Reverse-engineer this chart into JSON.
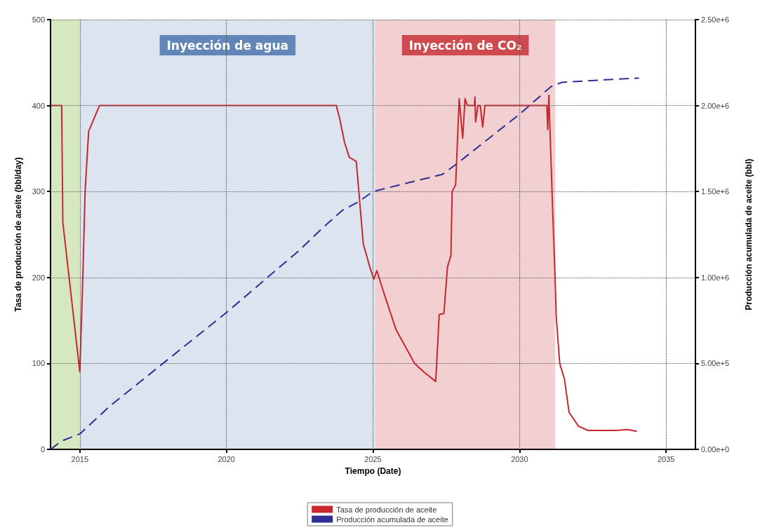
{
  "chart_data": {
    "type": "line",
    "xlabel": "Tiempo (Date)",
    "ylabel": "Tasa de producción de aceite (bbl/day)",
    "y2label": "Producción acumulada de aceite (bbl)",
    "xlim": [
      2014,
      2036
    ],
    "xticks": [
      2015,
      2020,
      2025,
      2030,
      2035
    ],
    "ylim": [
      0,
      500
    ],
    "yticks": [
      0,
      100,
      200,
      300,
      400,
      500
    ],
    "y2lim": [
      0,
      2500000
    ],
    "y2ticks": [
      {
        "value": 0,
        "label": "0.00e+0"
      },
      {
        "value": 500000,
        "label": "5.00e+5"
      },
      {
        "value": 1000000,
        "label": "1.00e+6"
      },
      {
        "value": 1500000,
        "label": "1.50e+6"
      },
      {
        "value": 2000000,
        "label": "2.00e+6"
      },
      {
        "value": 2500000,
        "label": "2.50e+6"
      }
    ],
    "grid": true,
    "legend": "bottom",
    "marker": "none",
    "bands": [
      {
        "axis": "x",
        "from": 2014,
        "to": 2015,
        "color": "#d5e8bf"
      },
      {
        "axis": "x",
        "from": 2015,
        "to": 2025.08,
        "label": "Inyección de agua",
        "color": "#dce4ef"
      },
      {
        "axis": "x",
        "from": 2025.08,
        "to": 2031.22,
        "label": "Inyección de CO₂",
        "color": "#f2cfd0"
      }
    ],
    "series": [
      {
        "name": "Tasa de producción de aceite",
        "color": "#c8282d",
        "line_style": "solid",
        "x": [
          2014,
          2014,
          2014.38,
          2014.42,
          2015,
          2015.1,
          2015.18,
          2015.3,
          2015.67,
          2023.75,
          2023.87,
          2024.03,
          2024.19,
          2024.43,
          2024.67,
          2024.91,
          2025.03,
          2025.13,
          2025.39,
          2025.79,
          2026.42,
          2026.74,
          2027.14,
          2027.26,
          2027.42,
          2027.54,
          2027.66,
          2027.7,
          2027.82,
          2027.94,
          2028.06,
          2028.14,
          2028.22,
          2028.46,
          2028.48,
          2028.5,
          2028.58,
          2028.66,
          2028.74,
          2028.82,
          2030.93,
          2030.96,
          2031,
          2031.05,
          2031.13,
          2031.21,
          2031.25,
          2031.37,
          2031.53,
          2031.69,
          2032.01,
          2032.33,
          2033.28,
          2033.68,
          2034
        ],
        "values": [
          0,
          400,
          400,
          264,
          90,
          198,
          300,
          370,
          400,
          400,
          384,
          357,
          340,
          335,
          239,
          210,
          198,
          208,
          180,
          139,
          100,
          90,
          79,
          157,
          158,
          212,
          226,
          300,
          308,
          408,
          362,
          408,
          400,
          400,
          410,
          381,
          400,
          400,
          375,
          400,
          400,
          372,
          412,
          359,
          278,
          202,
          155,
          100,
          82,
          43,
          27,
          22,
          22,
          23,
          21
        ]
      },
      {
        "name": "Producción acumulada de aceite",
        "color": "#2e2e96",
        "line_style": "dashed",
        "axis": "y2",
        "x": [
          2014,
          2014.38,
          2015,
          2016.06,
          2020,
          2022.5,
          2023.23,
          2023.95,
          2024.5,
          2025,
          2026.42,
          2027.37,
          2027.85,
          2030,
          2031.07,
          2031.44,
          2032.9,
          2034.07
        ],
        "values": [
          0,
          49000,
          90000,
          257000,
          796000,
          1160000,
          1280000,
          1390000,
          1440000,
          1500000,
          1560000,
          1600000,
          1660000,
          1950000,
          2110000,
          2135000,
          2150000,
          2160000
        ]
      }
    ]
  }
}
